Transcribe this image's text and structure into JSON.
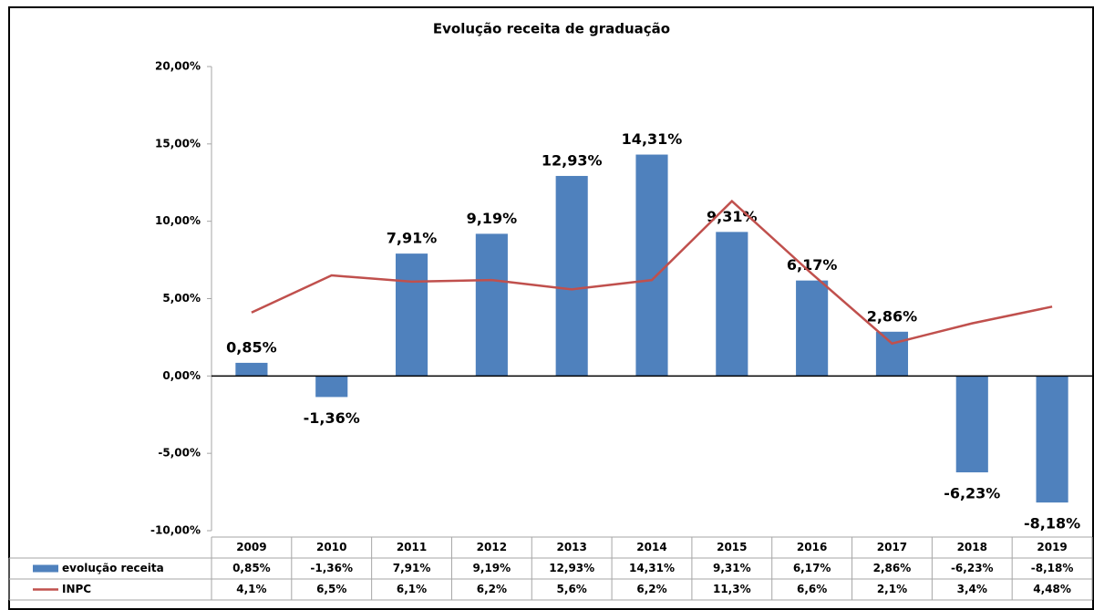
{
  "chart_data": {
    "type": "bar",
    "title": "Evolução receita de graduação",
    "categories": [
      "2009",
      "2010",
      "2011",
      "2012",
      "2013",
      "2014",
      "2015",
      "2016",
      "2017",
      "2018",
      "2019"
    ],
    "series": [
      {
        "name": "evolução receita",
        "type": "bar",
        "color": "#4f81bd",
        "values": [
          0.85,
          -1.36,
          7.91,
          9.19,
          12.93,
          14.31,
          9.31,
          6.17,
          2.86,
          -6.23,
          -8.18
        ],
        "value_labels": [
          "0,85%",
          "-1,36%",
          "7,91%",
          "9,19%",
          "12,93%",
          "14,31%",
          "9,31%",
          "6,17%",
          "2,86%",
          "-6,23%",
          "-8,18%"
        ]
      },
      {
        "name": "INPC",
        "type": "line",
        "color": "#c0504d",
        "values": [
          4.1,
          6.5,
          6.1,
          6.2,
          5.6,
          6.2,
          11.3,
          6.6,
          2.1,
          3.4,
          4.48
        ],
        "value_labels": [
          "4,1%",
          "6,5%",
          "6,1%",
          "6,2%",
          "5,6%",
          "6,2%",
          "11,3%",
          "6,6%",
          "2,1%",
          "3,4%",
          "4,48%"
        ]
      }
    ],
    "ylim": [
      -10,
      20
    ],
    "yticks": [
      {
        "value": -10,
        "label": "-10,00%"
      },
      {
        "value": -5,
        "label": "-5,00%"
      },
      {
        "value": 0,
        "label": "0,00%"
      },
      {
        "value": 5,
        "label": "5,00%"
      },
      {
        "value": 10,
        "label": "10,00%"
      },
      {
        "value": 15,
        "label": "15,00%"
      },
      {
        "value": 20,
        "label": "20,00%"
      }
    ],
    "grid": false
  }
}
